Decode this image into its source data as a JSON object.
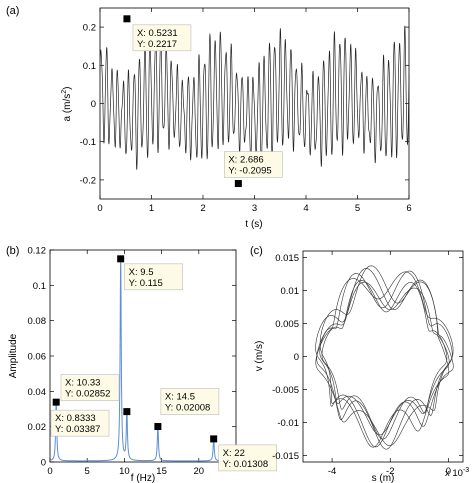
{
  "chart_data": [
    {
      "panel": "(a)",
      "type": "line",
      "xlabel": "t (s)",
      "ylabel_main": "a (m/s",
      "ylabel_sup": "2",
      "ylabel_close": ")",
      "xlim": [
        0,
        6
      ],
      "ylim": [
        -0.25,
        0.25
      ],
      "xticks": [
        0,
        1,
        2,
        3,
        4,
        5,
        6
      ],
      "yticks": [
        -0.2,
        -0.1,
        0,
        0.1,
        0.2
      ],
      "ytick_labels": [
        "-0.2",
        "-0.1",
        "0",
        "0.1",
        "0.2"
      ],
      "signal": {
        "components": [
          {
            "freq": 9.5,
            "amp": 0.115
          },
          {
            "freq": 10.33,
            "amp": 0.02852
          },
          {
            "freq": 14.5,
            "amp": 0.02008
          },
          {
            "freq": 22,
            "amp": 0.01308
          },
          {
            "freq": 0.8333,
            "amp": 0.03387
          }
        ]
      },
      "datatips": [
        {
          "x": 0.5231,
          "y": 0.2217,
          "lines": [
            "X: 0.5231",
            "Y: 0.2217"
          ]
        },
        {
          "x": 2.686,
          "y": -0.2095,
          "lines": [
            "X: 2.686",
            "Y: -0.2095"
          ]
        }
      ]
    },
    {
      "panel": "(b)",
      "type": "line",
      "xlabel": "f (Hz)",
      "ylabel": "Amplitude",
      "xlim": [
        0,
        25
      ],
      "ylim": [
        0,
        0.12
      ],
      "xticks": [
        0,
        5,
        10,
        15,
        20
      ],
      "yticks": [
        0,
        0.02,
        0.04,
        0.06,
        0.08,
        0.1,
        0.12
      ],
      "ytick_labels": [
        "0",
        "0.02",
        "0.04",
        "0.06",
        "0.08",
        "0.1",
        "0.12"
      ],
      "line_color": "#5b8fd6",
      "peaks": [
        {
          "x": 0.8333,
          "y": 0.03387
        },
        {
          "x": 9.5,
          "y": 0.115
        },
        {
          "x": 10.33,
          "y": 0.02852
        },
        {
          "x": 14.5,
          "y": 0.02008
        },
        {
          "x": 22,
          "y": 0.01308
        }
      ],
      "datatips": [
        {
          "x": 0.8333,
          "y": 0.03387,
          "lines": [
            "X: 0.8333",
            "Y: 0.03387"
          ]
        },
        {
          "x": 10.33,
          "y": 0.02852,
          "lines": [
            "X: 10.33",
            "Y: 0.02852"
          ]
        },
        {
          "x": 9.5,
          "y": 0.115,
          "lines": [
            "X: 9.5",
            "Y: 0.115"
          ]
        },
        {
          "x": 14.5,
          "y": 0.02008,
          "lines": [
            "X: 14.5",
            "Y: 0.02008"
          ]
        },
        {
          "x": 22,
          "y": 0.01308,
          "lines": [
            "X: 22",
            "Y: 0.01308"
          ]
        }
      ]
    },
    {
      "panel": "(c)",
      "type": "line",
      "xlabel": "s (m)",
      "ylabel": "v (m/s)",
      "xlim": [
        -0.005,
        0.0005
      ],
      "ylim": [
        -0.016,
        0.016
      ],
      "xticks": [
        -0.004,
        -0.002,
        0
      ],
      "xtick_labels": [
        "-4",
        "-2",
        "0"
      ],
      "x_multiplier": "x 10",
      "x_multiplier_exp": "-3",
      "yticks": [
        -0.015,
        -0.01,
        -0.005,
        0,
        0.005,
        0.01,
        0.015
      ],
      "ytick_labels": [
        "-0.015",
        "-0.01",
        "-0.005",
        "0",
        "0.005",
        "0.01",
        "0.015"
      ]
    }
  ]
}
